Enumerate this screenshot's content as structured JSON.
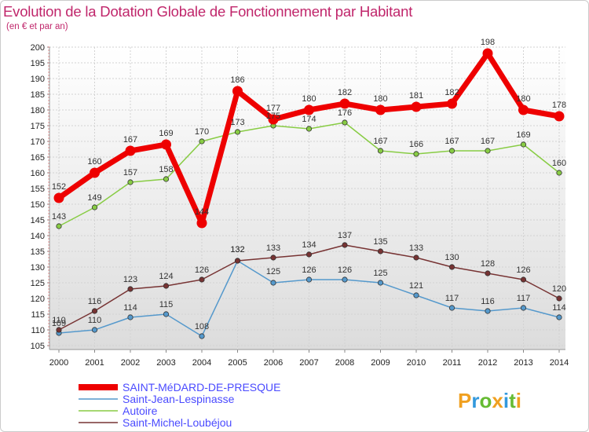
{
  "chart_data": {
    "type": "line",
    "title": "Evolution de la Dotation Globale de Fonctionnement par Habitant",
    "subtitle": "(en € et par an)",
    "x": [
      "2000",
      "2001",
      "2002",
      "2003",
      "2004",
      "2005",
      "2006",
      "2007",
      "2008",
      "2009",
      "2010",
      "2011",
      "2012",
      "2013",
      "2014"
    ],
    "ylim": [
      105,
      200
    ],
    "yticks": [
      105,
      110,
      115,
      120,
      125,
      130,
      135,
      140,
      145,
      150,
      155,
      160,
      165,
      170,
      175,
      180,
      185,
      190,
      195,
      200
    ],
    "series": [
      {
        "name": "SAINT-MéDARD-DE-PRESQUE",
        "color": "#ee0000",
        "values": [
          152,
          160,
          167,
          169,
          144,
          186,
          177,
          180,
          182,
          180,
          181,
          182,
          198,
          180,
          178
        ]
      },
      {
        "name": "Saint-Jean-Lespinasse",
        "color": "#5599cc",
        "values": [
          109,
          110,
          114,
          115,
          108,
          132,
          125,
          126,
          126,
          125,
          121,
          117,
          116,
          117,
          114
        ]
      },
      {
        "name": "Autoire",
        "color": "#88cc44",
        "values": [
          143,
          149,
          157,
          158,
          170,
          173,
          175,
          174,
          176,
          167,
          166,
          167,
          167,
          169,
          160
        ]
      },
      {
        "name": "Saint-Michel-Loubéjou",
        "color": "#773333",
        "values": [
          110,
          116,
          123,
          124,
          126,
          132,
          133,
          134,
          137,
          135,
          133,
          130,
          128,
          126,
          120
        ]
      }
    ]
  },
  "logo": {
    "text": "Proxiti",
    "letters": [
      "P",
      "r",
      "o",
      "x",
      "i",
      "t",
      "i"
    ],
    "colors": [
      "#f0a020",
      "#3399dd",
      "#66bb33",
      "#f0a020",
      "#3399dd",
      "#66bb33",
      "#f0a020"
    ]
  }
}
